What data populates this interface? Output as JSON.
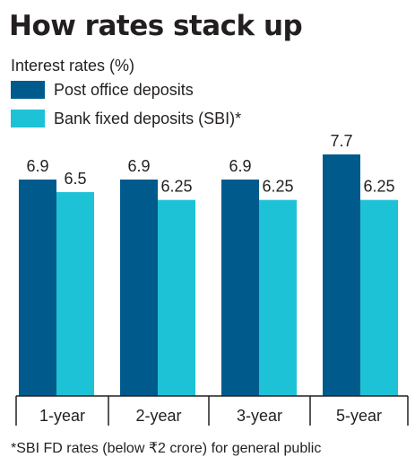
{
  "chart_data": {
    "type": "bar",
    "title": "How rates stack up",
    "subtitle": "Interest rates (%)",
    "categories": [
      "1-year",
      "2-year",
      "3-year",
      "5-year"
    ],
    "series": [
      {
        "name": "Post office deposits",
        "values": [
          6.9,
          6.9,
          6.9,
          7.7
        ],
        "labels": [
          "6.9",
          "6.9",
          "6.9",
          "7.7"
        ],
        "color": "#005b8c"
      },
      {
        "name": "Bank fixed deposits (SBI)*",
        "values": [
          6.5,
          6.25,
          6.25,
          6.25
        ],
        "labels": [
          "6.5",
          "6.25",
          "6.25",
          "6.25"
        ],
        "color": "#1ec2d6"
      }
    ],
    "ylim": [
      0,
      7.7
    ],
    "grid": false,
    "legend_position": "top-left",
    "footnote": "*SBI FD rates (below ₹2 crore) for general public"
  }
}
